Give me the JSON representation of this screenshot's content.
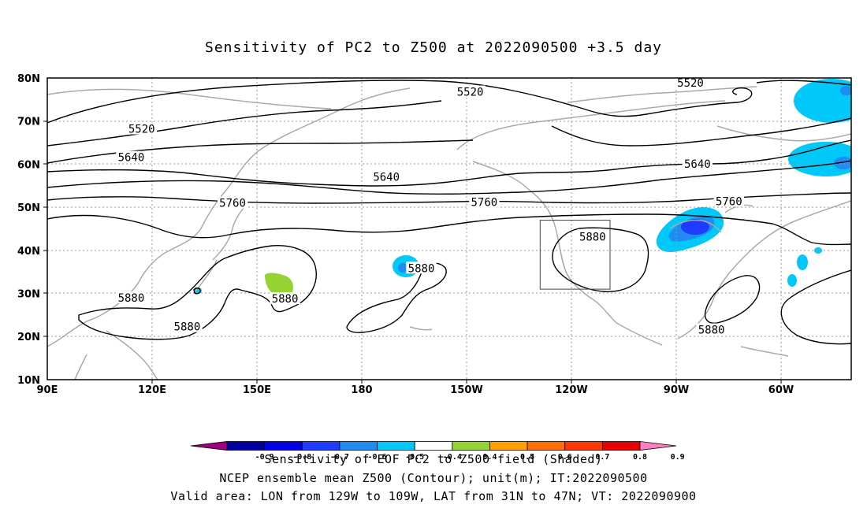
{
  "title": "Sensitivity of PC2 to Z500 at 2022090500 +3.5 day",
  "axes": {
    "lon_ticks": [
      "90E",
      "120E",
      "150E",
      "180",
      "150W",
      "120W",
      "90W",
      "60W"
    ],
    "lat_ticks": [
      "80N",
      "70N",
      "60N",
      "50N",
      "40N",
      "30N",
      "20N",
      "10N"
    ],
    "lon_range": [
      90,
      320
    ],
    "lat_range": [
      10,
      80
    ]
  },
  "contour_labels": [
    {
      "text": "5520",
      "lon": 211,
      "lat": 76.8
    },
    {
      "text": "5520",
      "lon": 274,
      "lat": 78.9
    },
    {
      "text": "5520",
      "lon": 117,
      "lat": 68.2
    },
    {
      "text": "5640",
      "lon": 114,
      "lat": 61.6
    },
    {
      "text": "5640",
      "lon": 187,
      "lat": 57.1
    },
    {
      "text": "5640",
      "lon": 276,
      "lat": 60.1
    },
    {
      "text": "5760",
      "lon": 143,
      "lat": 51.0
    },
    {
      "text": "5760",
      "lon": 215,
      "lat": 51.2
    },
    {
      "text": "5760",
      "lon": 285,
      "lat": 51.4
    },
    {
      "text": "5880",
      "lon": 246,
      "lat": 43.2
    },
    {
      "text": "5880",
      "lon": 197,
      "lat": 35.9
    },
    {
      "text": "5880",
      "lon": 114,
      "lat": 29.0
    },
    {
      "text": "5880",
      "lon": 158,
      "lat": 28.8
    },
    {
      "text": "5880",
      "lon": 130,
      "lat": 22.3
    },
    {
      "text": "5880",
      "lon": 280,
      "lat": 21.6
    }
  ],
  "valid_box": {
    "lon_min": 231,
    "lon_max": 251,
    "lat_min": 31,
    "lat_max": 47
  },
  "colorbar": {
    "labels": [
      "-0.9",
      "-0.8",
      "-0.7",
      "-0.6",
      "-0.5",
      "-0.4",
      "0.4",
      "0.5",
      "0.6",
      "0.7",
      "0.8",
      "0.9"
    ],
    "colors": [
      "#a0007f",
      "#0000a0",
      "#0000e6",
      "#1e3cff",
      "#1e8cf0",
      "#00c8f8",
      "#ffffff",
      "#96d232",
      "#ffa000",
      "#ff6e00",
      "#ff3700",
      "#e60000",
      "#ff80c0"
    ]
  },
  "footer": {
    "line1": "Sensitivity of EOF PC2 to Z500 field (Shaded)",
    "line2": "NCEP ensemble mean Z500 (Contour); unit(m); IT:2022090500",
    "line3": "Valid area: LON from 129W to 109W, LAT from 31N to 47N; VT: 2022090900"
  }
}
